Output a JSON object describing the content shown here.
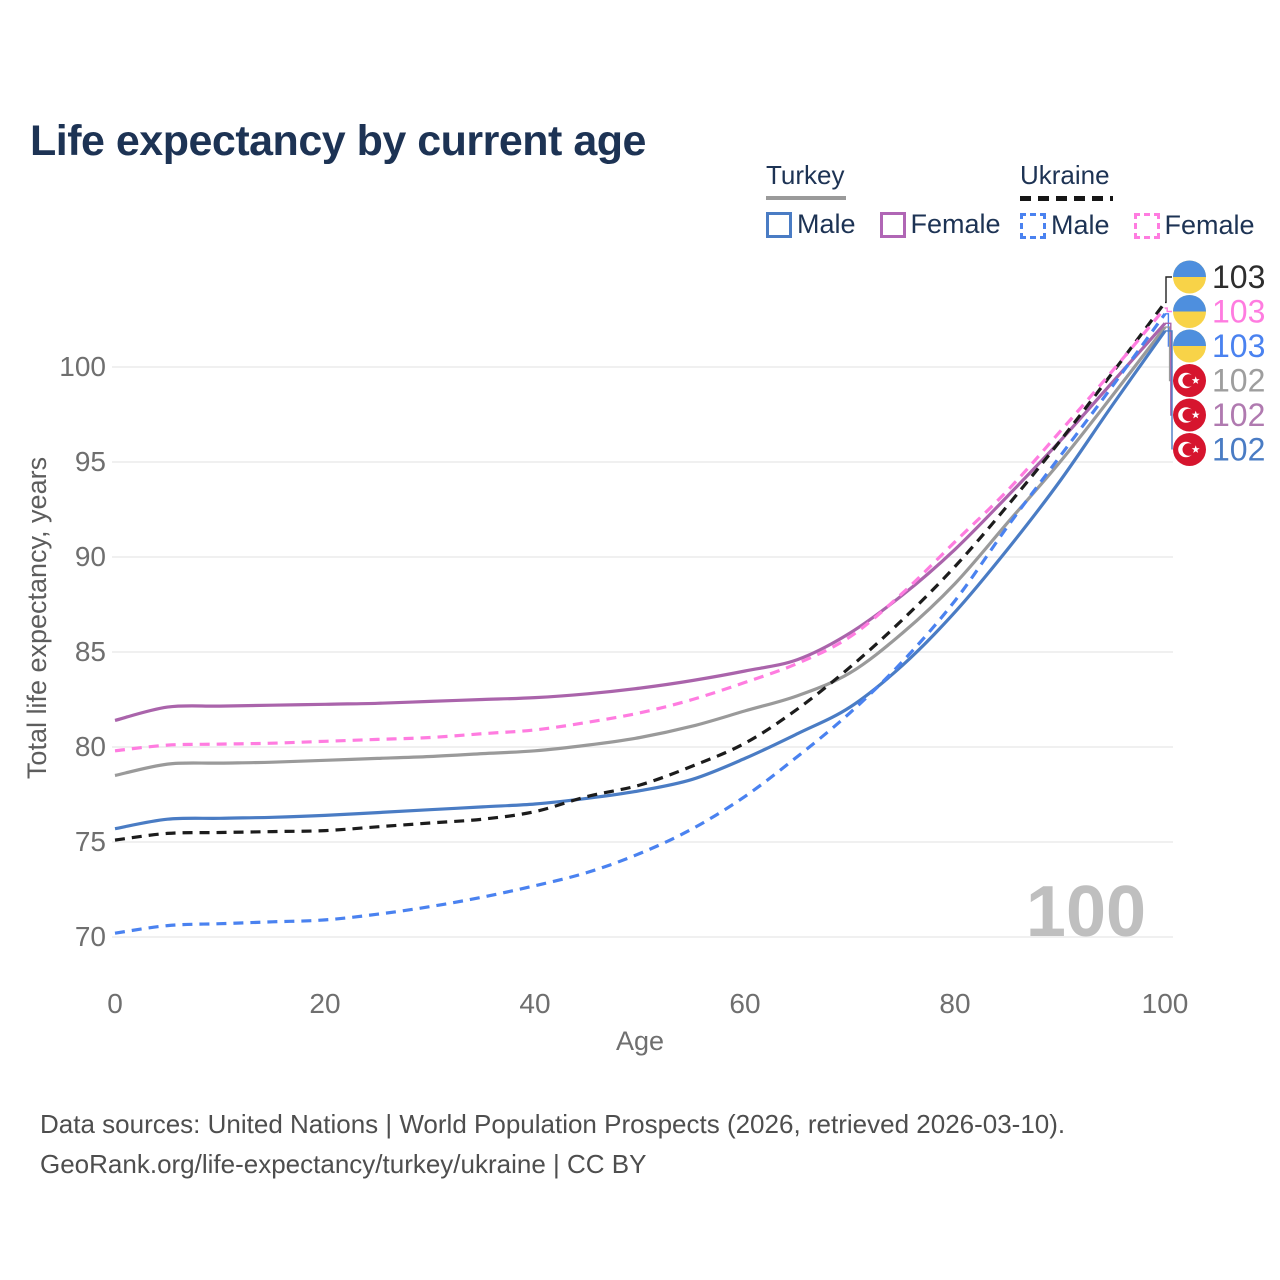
{
  "title": "Life expectancy by current age",
  "legend": {
    "turkey": {
      "label": "Turkey",
      "male": "Male",
      "female": "Female",
      "line_color_male": "#4a7cc4",
      "line_color_female": "#b066b5",
      "header_line_color": "#9a9a9a"
    },
    "ukraine": {
      "label": "Ukraine",
      "male": "Male",
      "female": "Female",
      "line_color_male": "#4a82f0",
      "line_color_female": "#ff7ce0",
      "header_line_color": "#161616"
    }
  },
  "watermark": "100",
  "footer": {
    "line1": "Data sources: United Nations | World Population Prospects (2026, retrieved 2026-03-10).",
    "line2": "GeoRank.org/life-expectancy/turkey/ukraine | CC BY"
  },
  "chart_data": {
    "type": "line",
    "title": "Life expectancy by current age",
    "xlabel": "Age",
    "ylabel": "Total life expectancy, years",
    "x_ticks": [
      0,
      20,
      40,
      60,
      80,
      100
    ],
    "y_ticks": [
      70,
      75,
      80,
      85,
      90,
      95,
      100
    ],
    "xlim": [
      0,
      100
    ],
    "ylim": [
      69,
      104
    ],
    "grid": "horizontal-only",
    "legend_position": "top-right",
    "ages": [
      0,
      5,
      10,
      15,
      20,
      25,
      30,
      35,
      40,
      45,
      50,
      55,
      60,
      65,
      70,
      75,
      80,
      85,
      90,
      95,
      100
    ],
    "series": [
      {
        "id": "uk_both",
        "name": "Ukraine (both sexes)",
        "country": "Ukraine",
        "flag": "ua",
        "color": "#1c1c1c",
        "dashed": true,
        "end_label": "103",
        "end_label_color": "#2d2d2d",
        "values": [
          75.1,
          75.45,
          75.5,
          75.55,
          75.6,
          75.8,
          76.0,
          76.2,
          76.6,
          77.4,
          78.0,
          79.0,
          80.2,
          82.0,
          84.2,
          86.7,
          89.5,
          92.7,
          96.1,
          99.7,
          103.4
        ]
      },
      {
        "id": "uk_female",
        "name": "Ukraine Female",
        "country": "Ukraine",
        "flag": "ua",
        "color": "#ff7ce0",
        "dashed": true,
        "end_label": "103",
        "end_label_color": "#ff7ce0",
        "values": [
          79.8,
          80.1,
          80.15,
          80.2,
          80.3,
          80.4,
          80.5,
          80.7,
          80.9,
          81.3,
          81.8,
          82.5,
          83.4,
          84.4,
          85.8,
          88.1,
          90.8,
          93.5,
          96.6,
          99.8,
          103.1
        ]
      },
      {
        "id": "uk_male",
        "name": "Ukraine Male",
        "country": "Ukraine",
        "flag": "ua",
        "color": "#4a82f0",
        "dashed": true,
        "end_label": "103",
        "end_label_color": "#4a82f0",
        "values": [
          70.2,
          70.6,
          70.7,
          70.8,
          70.9,
          71.2,
          71.6,
          72.1,
          72.7,
          73.4,
          74.4,
          75.7,
          77.4,
          79.5,
          81.8,
          84.5,
          87.7,
          91.6,
          95.3,
          99.0,
          102.8
        ]
      },
      {
        "id": "tr_both",
        "name": "Turkey (both sexes)",
        "country": "Turkey",
        "flag": "tr",
        "color": "#9a9a9a",
        "dashed": false,
        "end_label": "102",
        "end_label_color": "#9e9e9e",
        "values": [
          78.5,
          79.1,
          79.15,
          79.2,
          79.3,
          79.4,
          79.5,
          79.65,
          79.8,
          80.1,
          80.5,
          81.1,
          81.9,
          82.7,
          83.9,
          86.0,
          88.6,
          91.8,
          95.0,
          98.5,
          102.1
        ]
      },
      {
        "id": "tr_female",
        "name": "Turkey Female",
        "country": "Turkey",
        "flag": "tr",
        "color": "#aa64ab",
        "dashed": false,
        "end_label": "102",
        "end_label_color": "#b07ab0",
        "values": [
          81.4,
          82.1,
          82.15,
          82.2,
          82.25,
          82.3,
          82.4,
          82.5,
          82.6,
          82.8,
          83.1,
          83.5,
          84.0,
          84.6,
          86.0,
          88.0,
          90.4,
          93.2,
          96.1,
          99.2,
          102.3
        ]
      },
      {
        "id": "tr_male",
        "name": "Turkey Male",
        "country": "Turkey",
        "flag": "tr",
        "color": "#4a7cc4",
        "dashed": false,
        "end_label": "102",
        "end_label_color": "#4a7cc4",
        "values": [
          75.7,
          76.2,
          76.25,
          76.3,
          76.4,
          76.55,
          76.7,
          76.85,
          77.0,
          77.3,
          77.7,
          78.3,
          79.4,
          80.7,
          82.1,
          84.3,
          87.1,
          90.4,
          94.0,
          98.0,
          101.9
        ]
      }
    ],
    "flag_colors": {
      "ua_blue": "#4e8fde",
      "ua_yellow": "#f8d348",
      "tr_red": "#d6152e"
    },
    "grid_color": "#ebebeb",
    "tick_color": "#6f6f6f",
    "watermark_color": "#bfbfbf"
  }
}
